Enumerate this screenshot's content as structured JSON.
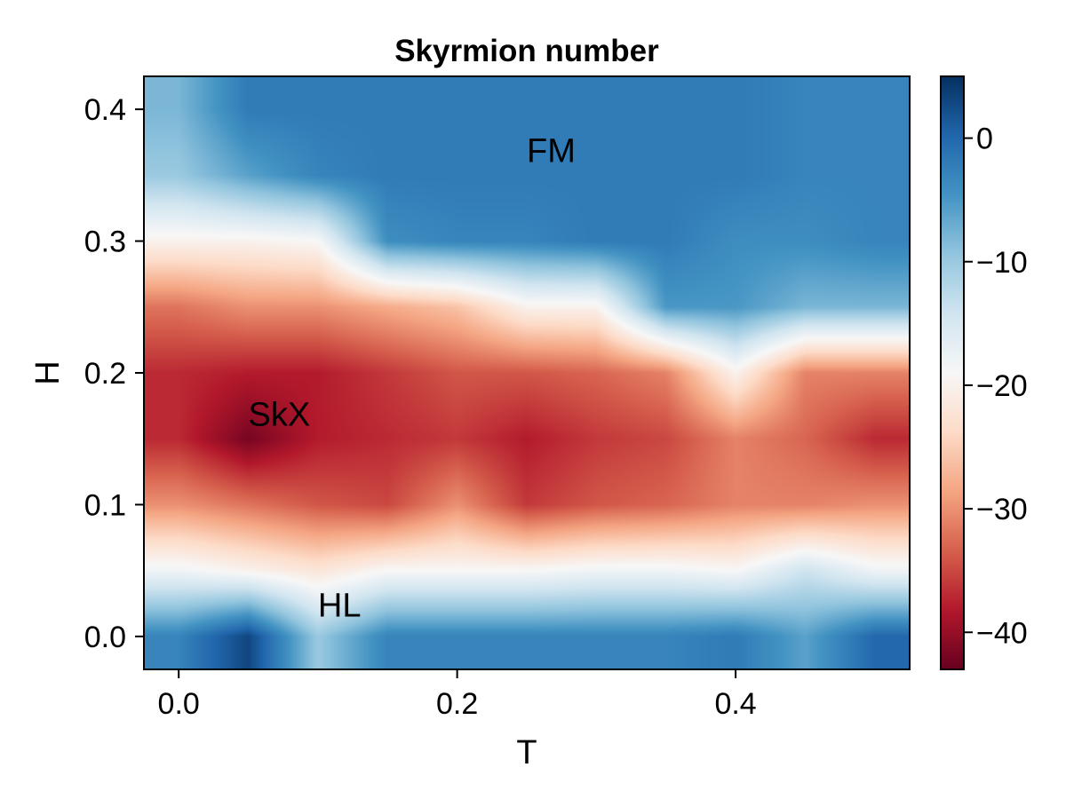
{
  "chart_data": {
    "type": "heatmap",
    "title": "Skyrmion number",
    "xlabel": "T",
    "ylabel": "H",
    "xlim": [
      -0.025,
      0.525
    ],
    "ylim": [
      -0.025,
      0.425
    ],
    "xticks": [
      0.0,
      0.2,
      0.4
    ],
    "xtick_labels": [
      "0.0",
      "0.2",
      "0.4"
    ],
    "yticks": [
      0.0,
      0.1,
      0.2,
      0.3,
      0.4
    ],
    "ytick_labels": [
      "0.0",
      "0.1",
      "0.2",
      "0.3",
      "0.4"
    ],
    "colorscale": "RdBu",
    "colorbar": {
      "range": [
        -43,
        5
      ],
      "ticks": [
        0,
        -10,
        -20,
        -30,
        -40
      ],
      "tick_labels": [
        "0",
        "−10",
        "−20",
        "−30",
        "−40"
      ]
    },
    "grid": false,
    "x": [
      0.0,
      0.05,
      0.1,
      0.15,
      0.2,
      0.25,
      0.3,
      0.35,
      0.4,
      0.45,
      0.5
    ],
    "y": [
      0.0,
      0.05,
      0.1,
      0.15,
      0.2,
      0.25,
      0.3,
      0.35,
      0.4
    ],
    "z": [
      [
        -3,
        3,
        -10,
        -3,
        -3,
        -3,
        -3,
        -3,
        -2,
        -6,
        0
      ],
      [
        -18,
        -20,
        -22,
        -19,
        -19,
        -19,
        -18,
        -18,
        -19,
        -14,
        -18
      ],
      [
        -30,
        -32,
        -34,
        -35,
        -30,
        -36,
        -34,
        -33,
        -31,
        -31,
        -30
      ],
      [
        -37,
        -42,
        -38,
        -37,
        -36,
        -38,
        -36,
        -35,
        -31,
        -33,
        -37
      ],
      [
        -37,
        -38,
        -38,
        -36,
        -34,
        -34,
        -33,
        -31,
        -20,
        -31,
        -31
      ],
      [
        -32,
        -30,
        -30,
        -28,
        -26,
        -20,
        -20,
        -5,
        -5,
        -8,
        -8
      ],
      [
        -20,
        -20,
        -19,
        -4,
        -3,
        -3,
        -2,
        -2,
        -4,
        -4,
        -3
      ],
      [
        -10,
        -6,
        -3,
        -2,
        -2,
        -2,
        -2,
        -2,
        -2,
        -3,
        -3
      ],
      [
        -8,
        -2,
        -2,
        -2,
        -2,
        -2,
        -2,
        -2,
        -2,
        -3,
        -3
      ]
    ],
    "annotations": [
      {
        "text": "FM",
        "x": 0.25,
        "y": 0.36
      },
      {
        "text": "SkX",
        "x": 0.05,
        "y": 0.16
      },
      {
        "text": "HL",
        "x": 0.1,
        "y": 0.015
      }
    ]
  }
}
